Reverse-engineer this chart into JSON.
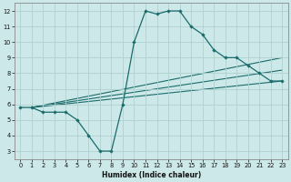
{
  "xlabel": "Humidex (Indice chaleur)",
  "xlim": [
    -0.5,
    23.5
  ],
  "ylim": [
    2.5,
    12.5
  ],
  "xticks": [
    0,
    1,
    2,
    3,
    4,
    5,
    6,
    7,
    8,
    9,
    10,
    11,
    12,
    13,
    14,
    15,
    16,
    17,
    18,
    19,
    20,
    21,
    22,
    23
  ],
  "yticks": [
    3,
    4,
    5,
    6,
    7,
    8,
    9,
    10,
    11,
    12
  ],
  "bg_color": "#cce8e8",
  "grid_color": "#b0d0d0",
  "line_color": "#1a6b6b",
  "curve": {
    "x": [
      0,
      1,
      2,
      3,
      4,
      5,
      6,
      7,
      8,
      9,
      10,
      11,
      12,
      13,
      14,
      15,
      16,
      17,
      18,
      19,
      20,
      21,
      22,
      23
    ],
    "y": [
      5.8,
      5.8,
      5.5,
      5.5,
      5.5,
      5.0,
      4.0,
      3.0,
      3.0,
      6.0,
      10.0,
      12.0,
      11.8,
      12.0,
      12.0,
      11.0,
      10.5,
      9.5,
      9.0,
      9.0,
      8.5,
      8.0,
      7.5,
      7.5
    ]
  },
  "straight_lines": [
    {
      "x": [
        1,
        23
      ],
      "y": [
        5.8,
        9.0
      ]
    },
    {
      "x": [
        1,
        23
      ],
      "y": [
        5.8,
        8.2
      ]
    },
    {
      "x": [
        1,
        23
      ],
      "y": [
        5.8,
        7.5
      ]
    }
  ]
}
